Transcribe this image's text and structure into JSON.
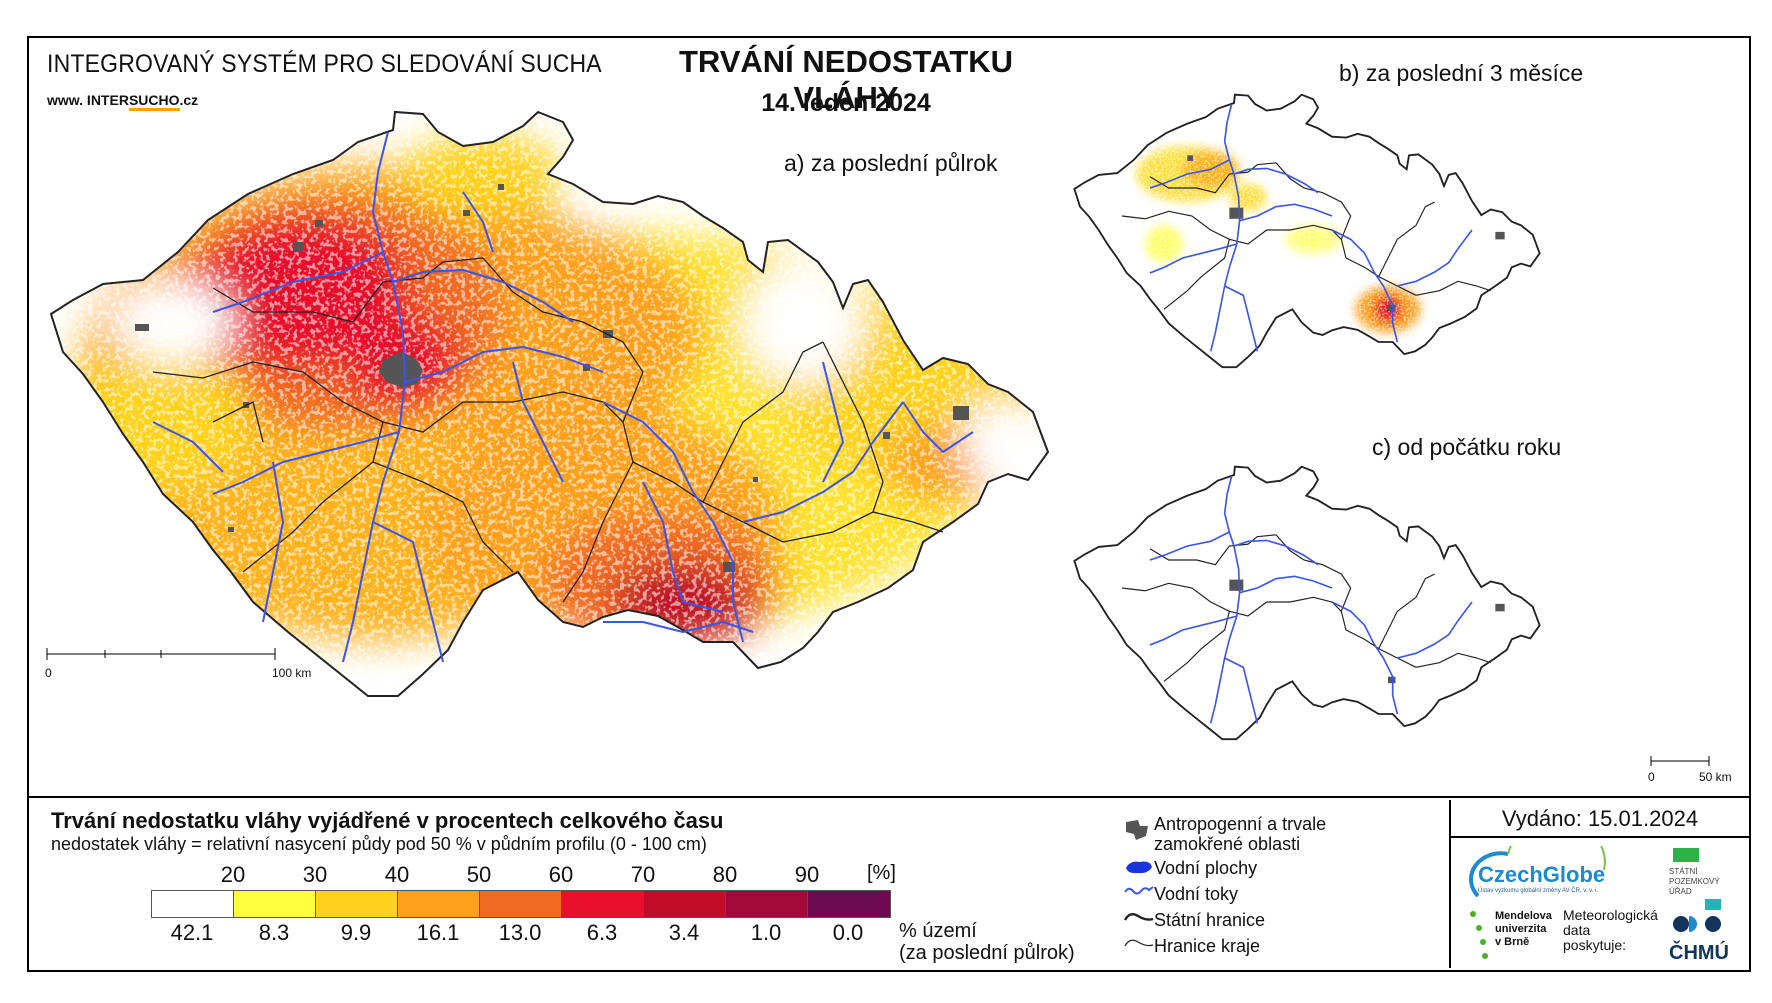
{
  "header": {
    "system_title": "INTEGROVANÝ SYSTÉM PRO SLEDOVÁNÍ SUCHA",
    "website_prefix": "www. INTER",
    "website_highlight": "SUCHO",
    "website_suffix": ".cz",
    "main_title": "TRVÁNÍ NEDOSTATKU VLÁHY",
    "date": "14. leden 2024"
  },
  "panels": {
    "a_label": "a) za poslední půlrok",
    "b_label": "b) za poslední 3 měsíce",
    "c_label": "c) od počátku roku"
  },
  "scalebars": {
    "main_zero": "0",
    "main_end": "100 km",
    "small_zero": "0",
    "small_end": "50 km"
  },
  "legend": {
    "title": "Trvání nedostatku vláhy vyjádřené v procentech celkového času",
    "subtitle": "nedostatek vláhy = relativní nasycení půdy pod 50 % v půdním profilu (0 - 100 cm)",
    "unit": "[%]",
    "breaks": [
      "20",
      "30",
      "40",
      "50",
      "60",
      "70",
      "80",
      "90"
    ],
    "class_colors": [
      "#ffffff",
      "#ffff40",
      "#ffd21e",
      "#ffa01c",
      "#f26a22",
      "#e8102a",
      "#c00c28",
      "#a2083a",
      "#6e0a4e"
    ],
    "area_percent": [
      "42.1",
      "8.3",
      "9.9",
      "16.1",
      "13.0",
      "6.3",
      "3.4",
      "1.0",
      "0.0"
    ],
    "area_label_line1": "% území",
    "area_label_line2": "(za poslední půlrok)"
  },
  "symbols": {
    "urban_line1": "Antropogenní a trvale",
    "urban_line2": "zamokřené oblasti",
    "water_bodies": "Vodní plochy",
    "rivers": "Vodní toky",
    "state_border": "Státní hranice",
    "region_border": "Hranice kraje"
  },
  "footer": {
    "issued": "Vydáno: 15.01.2024",
    "czechglobe": "CzechGlobe",
    "czechglobe_sub": "Ústav výzkumu globální změny AV ČR, v. v. i.",
    "spu_line1": "STÁTNÍ",
    "spu_line2": "POZEMKOVÝ",
    "spu_line3": "ÚŘAD",
    "mendel_line1": "Mendelova",
    "mendel_line2": "univerzita",
    "mendel_line3": "v Brně",
    "meteo_line1": "Meteorologická",
    "meteo_line2": "data",
    "meteo_line3": "poskytuje:",
    "chmu": "ČHMÚ"
  },
  "colors": {
    "river": "#3a55e8",
    "urban": "#555555",
    "border": "#222222"
  }
}
